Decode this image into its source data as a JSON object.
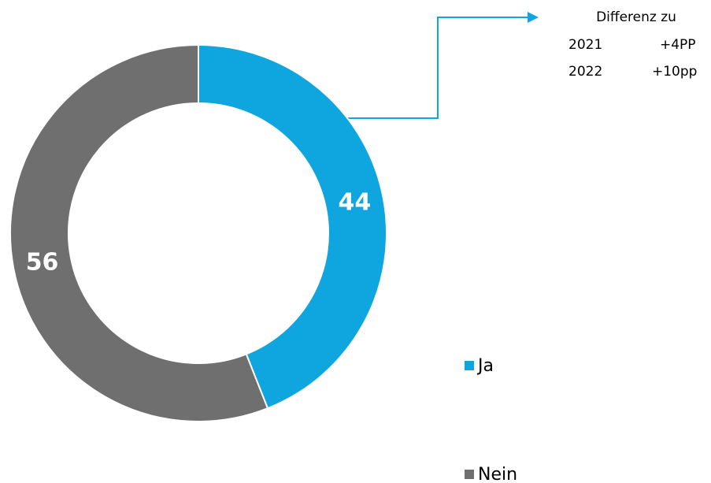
{
  "chart_data": {
    "type": "donut",
    "categories": [
      "Ja",
      "Nein"
    ],
    "values": [
      44,
      56
    ],
    "colors": [
      "#0fa5df",
      "#6f6f6f"
    ],
    "annotation": {
      "title": "Differenz zu",
      "rows": [
        [
          "2021",
          "+4PP"
        ],
        [
          "2022",
          "+10pp"
        ]
      ]
    },
    "legend": "right"
  }
}
